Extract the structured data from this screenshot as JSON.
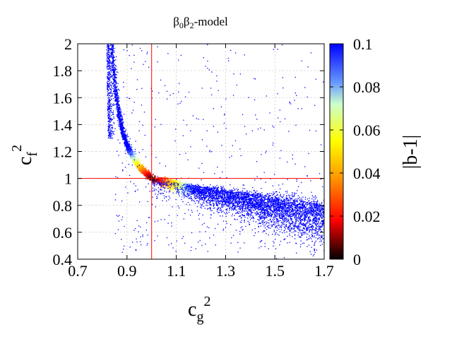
{
  "chart_data": {
    "type": "scatter",
    "title_parts": [
      "β",
      "0",
      "β",
      "2",
      "-model"
    ],
    "xlabel_base": "c",
    "xlabel_sub": "g",
    "xlabel_sup": "2",
    "ylabel_base": "c",
    "ylabel_sub": "f",
    "ylabel_sup": "2",
    "xlim": [
      0.7,
      1.7
    ],
    "ylim": [
      0.4,
      2.0
    ],
    "x_ticks": [
      "0.7",
      "0.9",
      "1.1",
      "1.3",
      "1.5",
      "1.7"
    ],
    "y_ticks": [
      "0.4",
      "0.6",
      "0.8",
      "1",
      "1.2",
      "1.4",
      "1.6",
      "1.8",
      "2"
    ],
    "grid": true,
    "reference_lines": {
      "x": 1.0,
      "y": 1.0,
      "color": "#ff0000"
    },
    "colorbar": {
      "label": "|b-1|",
      "range": [
        0,
        0.1
      ],
      "ticks": [
        "0",
        "0.02",
        "0.04",
        "0.06",
        "0.08",
        "0.1"
      ],
      "colors": [
        "#000000",
        "#ff0000",
        "#ff9900",
        "#ffff00",
        "#ccffcc",
        "#6699ff",
        "#0000ff"
      ]
    },
    "series": [
      {
        "kind": "colored-point-cloud",
        "description_upper_branch": [
          [
            0.82,
            2.0
          ],
          [
            0.83,
            1.45
          ],
          [
            0.86,
            1.2
          ],
          [
            0.9,
            1.12
          ],
          [
            0.95,
            1.06
          ],
          [
            1.0,
            1.0
          ]
        ],
        "description_lower_branch": [
          [
            1.0,
            1.0
          ],
          [
            1.1,
            0.95
          ],
          [
            1.3,
            0.9
          ],
          [
            1.5,
            0.83
          ],
          [
            1.7,
            0.78
          ]
        ],
        "value_near_reference": 0.0,
        "value_far": 0.1
      }
    ]
  }
}
